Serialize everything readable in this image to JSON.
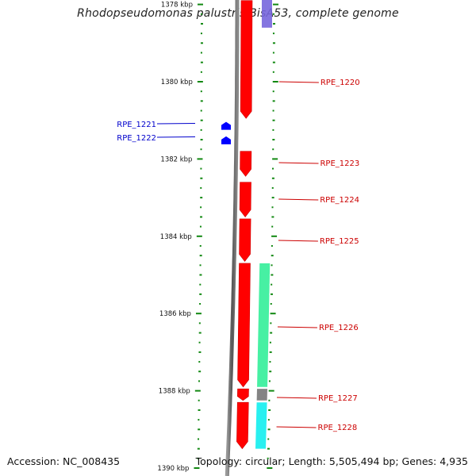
{
  "title": "Rhodopseudomonas palustris BisA53, complete genome",
  "footer": {
    "accession": "Accession: NC_008435",
    "summary": "Topology: circular; Length: 5,505,494 bp; Genes: 4,935"
  },
  "scale": {
    "unit": "kbp",
    "major_ticks": [
      {
        "label": "1378 kbp",
        "kbp": 1378
      },
      {
        "label": "1380 kbp",
        "kbp": 1380
      },
      {
        "label": "1382 kbp",
        "kbp": 1382
      },
      {
        "label": "1384 kbp",
        "kbp": 1384
      },
      {
        "label": "1386 kbp",
        "kbp": 1386
      },
      {
        "label": "1388 kbp",
        "kbp": 1388
      },
      {
        "label": "1390 kbp",
        "kbp": 1390
      }
    ]
  },
  "genes": [
    {
      "label": "RPE_1220",
      "start_kbp": 1377.9,
      "end_kbp": 1380.95,
      "strand": "-",
      "color": "#ff0000",
      "label_color": "#cc0000"
    },
    {
      "label": "RPE_1221",
      "start_kbp": 1381.0,
      "end_kbp": 1381.2,
      "strand": "+",
      "color": "#0000ff",
      "label_color": "#0000cc"
    },
    {
      "label": "RPE_1222",
      "start_kbp": 1381.35,
      "end_kbp": 1381.6,
      "strand": "+",
      "color": "#0000ff",
      "label_color": "#0000cc"
    },
    {
      "label": "RPE_1223",
      "start_kbp": 1381.8,
      "end_kbp": 1382.45,
      "strand": "-",
      "color": "#ff0000",
      "label_color": "#cc0000"
    },
    {
      "label": "RPE_1224",
      "start_kbp": 1382.6,
      "end_kbp": 1383.5,
      "strand": "-",
      "color": "#ff0000",
      "label_color": "#cc0000"
    },
    {
      "label": "RPE_1225",
      "start_kbp": 1383.55,
      "end_kbp": 1384.65,
      "strand": "-",
      "color": "#ff0000",
      "label_color": "#cc0000"
    },
    {
      "label": "RPE_1226",
      "start_kbp": 1384.7,
      "end_kbp": 1387.9,
      "strand": "-",
      "color": "#ff0000",
      "label_color": "#cc0000"
    },
    {
      "label": "RPE_1227",
      "start_kbp": 1387.95,
      "end_kbp": 1388.25,
      "strand": "-",
      "color": "#ff0000",
      "label_color": "#cc0000"
    },
    {
      "label": "RPE_1228",
      "start_kbp": 1388.3,
      "end_kbp": 1389.5,
      "strand": "-",
      "color": "#ff0000",
      "label_color": "#cc0000"
    }
  ],
  "features": [
    {
      "start_kbp": 1377.6,
      "end_kbp": 1378.6,
      "color": "#7766dd"
    },
    {
      "start_kbp": 1384.7,
      "end_kbp": 1387.9,
      "color": "#33ee99"
    },
    {
      "start_kbp": 1387.95,
      "end_kbp": 1388.25,
      "color": "#777777"
    },
    {
      "start_kbp": 1388.3,
      "end_kbp": 1389.5,
      "color": "#11eeee"
    }
  ]
}
